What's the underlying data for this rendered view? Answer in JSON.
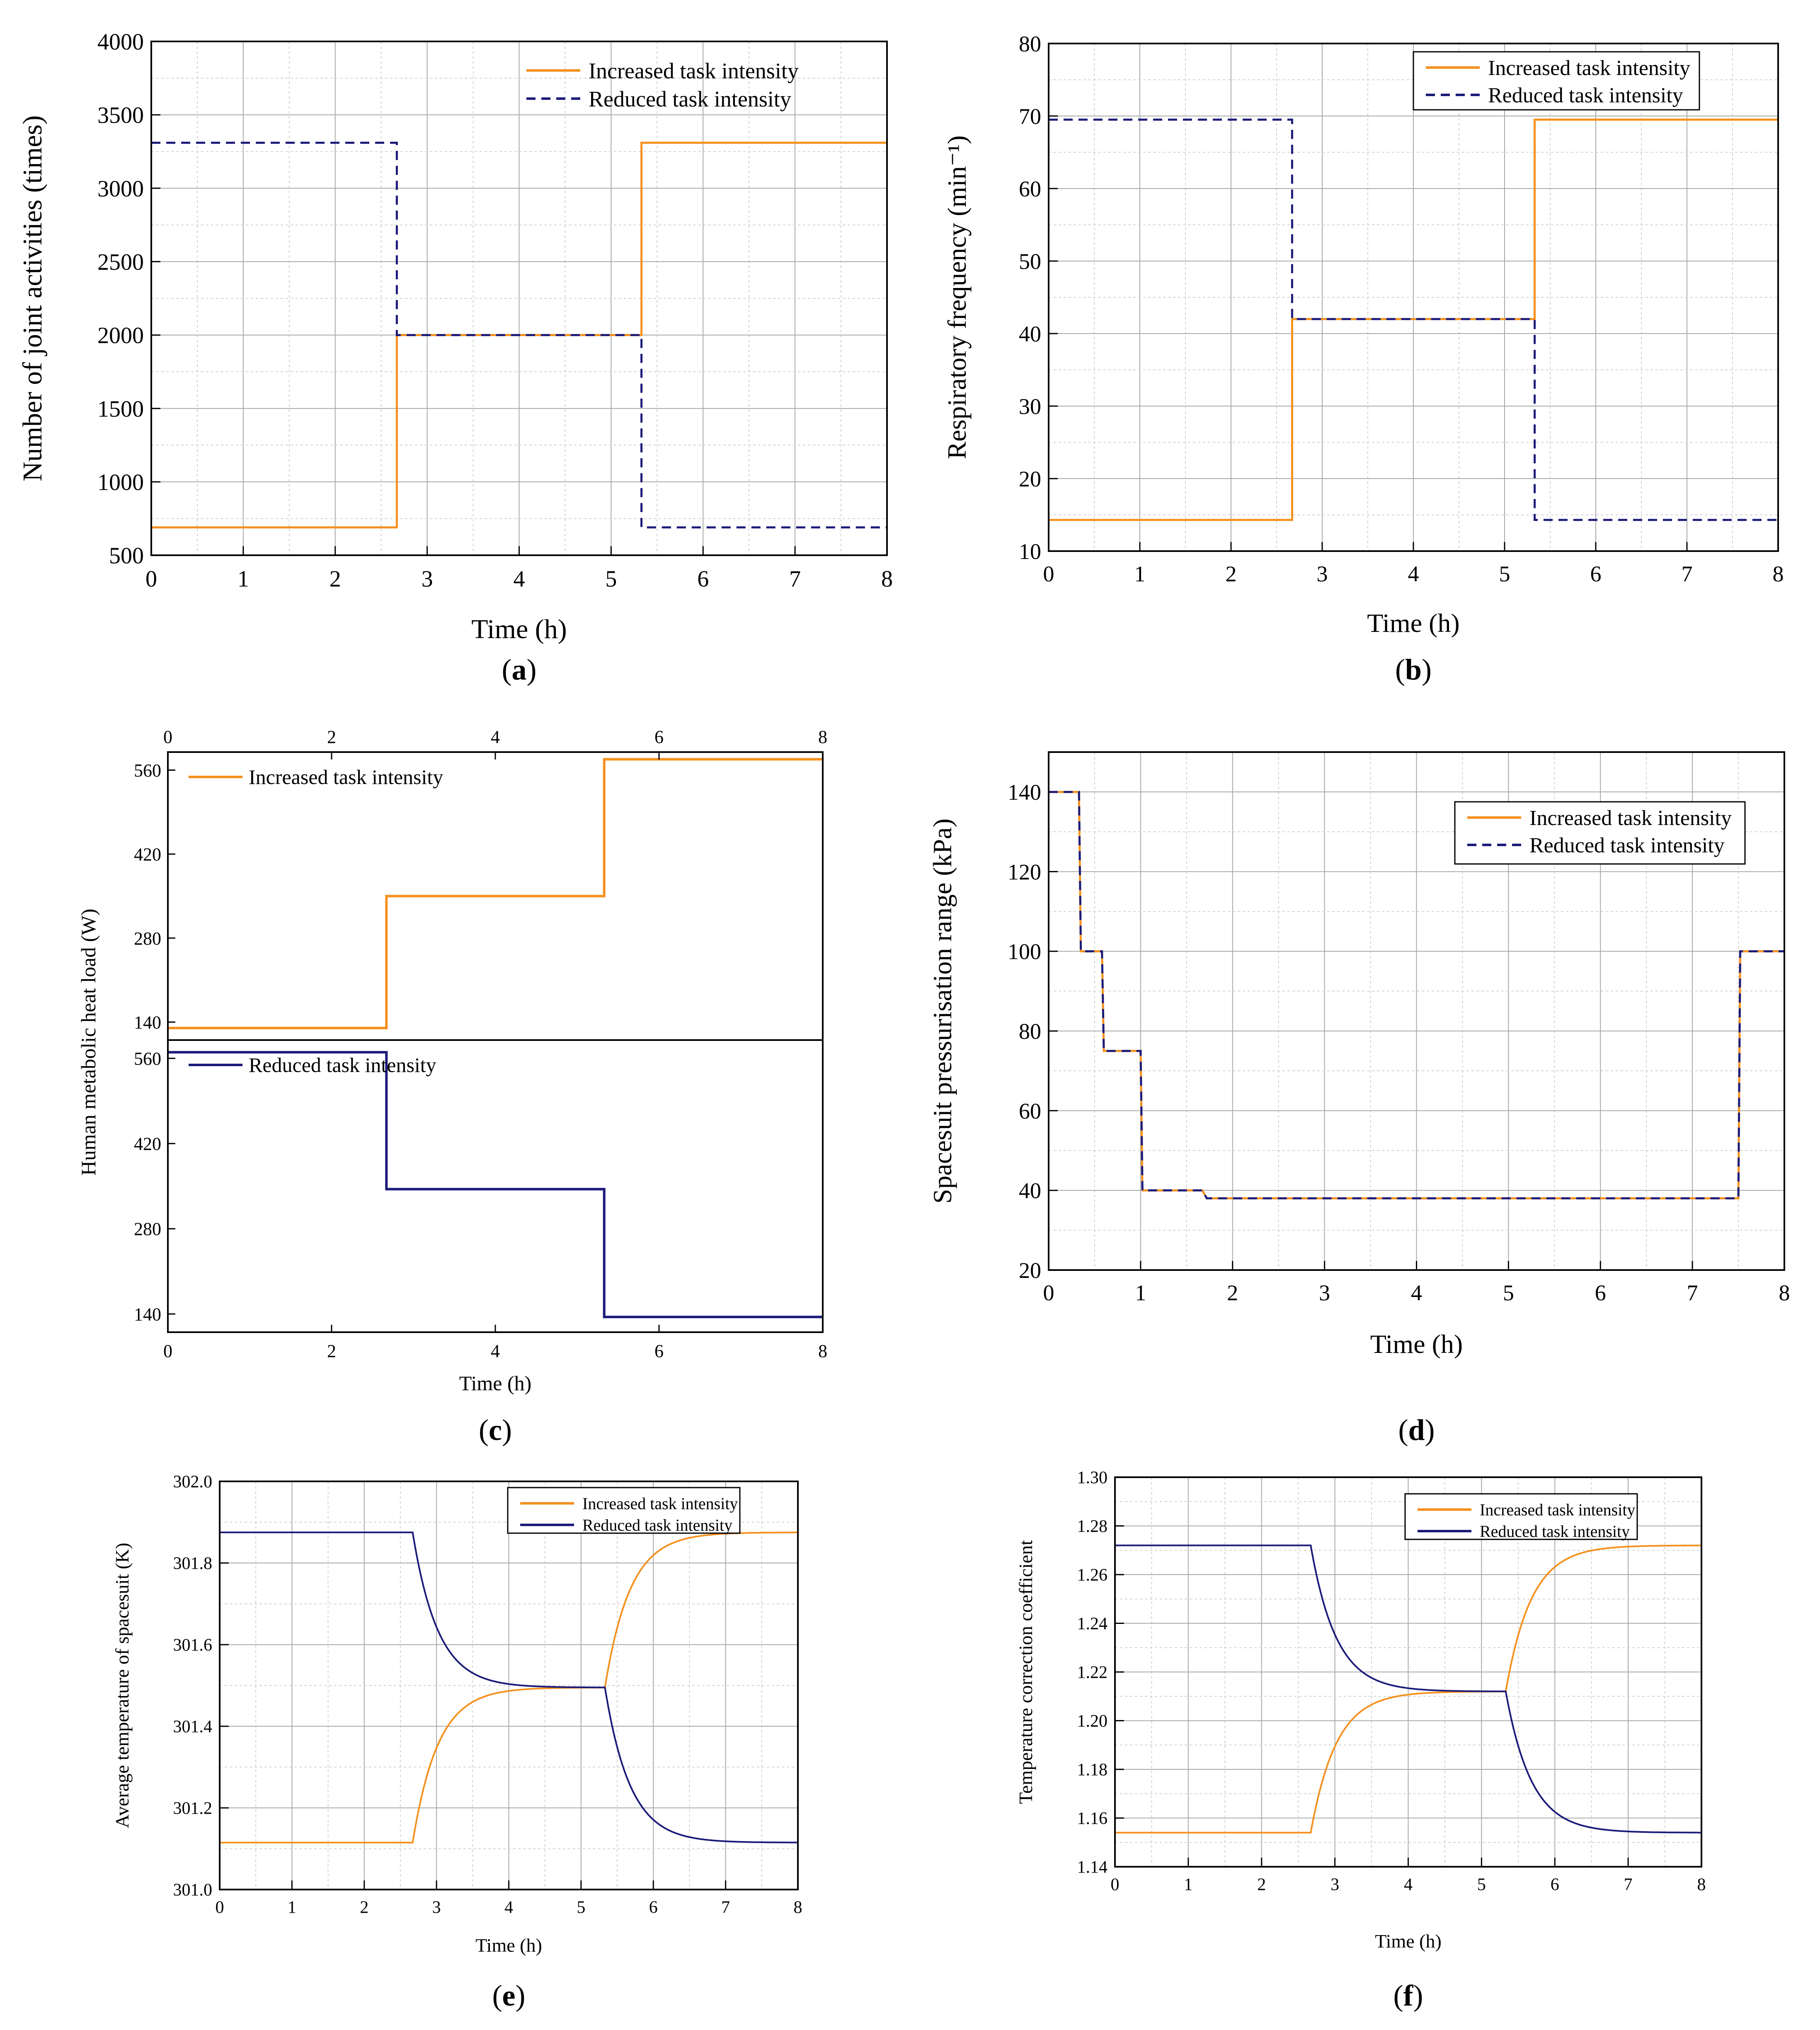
{
  "figure": {
    "colors": {
      "increased": "#F5901E",
      "reduced": "#1B1B7A",
      "grid": "#a8a8a8",
      "minor_grid": "#d2d2d2"
    },
    "legend": {
      "increased": "Increased task intensity",
      "reduced": "Reduced task intensity"
    }
  },
  "chart_data": [
    {
      "id": "a",
      "type": "line",
      "caption": "(a)",
      "xlabel": "Time (h)",
      "ylabel": "Number of joint activities (times)",
      "xlim": [
        0,
        8
      ],
      "ylim": [
        500,
        4000
      ],
      "xticks": [
        0,
        1,
        2,
        3,
        4,
        5,
        6,
        7,
        8
      ],
      "yticks": [
        500,
        1000,
        1500,
        2000,
        2500,
        3000,
        3500,
        4000
      ],
      "legend_position": "top-right",
      "series": [
        {
          "name": "Increased task intensity",
          "style": "solid",
          "color": "#F5901E",
          "step": true,
          "x": [
            0,
            2.67,
            2.67,
            5.33,
            5.33,
            8
          ],
          "y": [
            690,
            690,
            2000,
            2000,
            3310,
            3310
          ]
        },
        {
          "name": "Reduced task intensity",
          "style": "dashed",
          "color": "#1B1B7A",
          "step": true,
          "x": [
            0,
            2.67,
            2.67,
            5.33,
            5.33,
            8
          ],
          "y": [
            3310,
            3310,
            2000,
            2000,
            690,
            690
          ]
        }
      ]
    },
    {
      "id": "b",
      "type": "line",
      "caption": "(b)",
      "xlabel": "Time (h)",
      "ylabel": "Respiratory frequency (min⁻¹)",
      "xlim": [
        0,
        8
      ],
      "ylim": [
        10,
        80
      ],
      "xticks": [
        0,
        1,
        2,
        3,
        4,
        5,
        6,
        7,
        8
      ],
      "yticks": [
        10,
        20,
        30,
        40,
        50,
        60,
        70,
        80
      ],
      "legend_position": "top-right",
      "series": [
        {
          "name": "Increased task intensity",
          "style": "solid",
          "color": "#F5901E",
          "step": true,
          "x": [
            0,
            2.67,
            2.67,
            5.33,
            5.33,
            8
          ],
          "y": [
            14.3,
            14.3,
            42,
            42,
            69.5,
            69.5
          ]
        },
        {
          "name": "Reduced task intensity",
          "style": "dashed",
          "color": "#1B1B7A",
          "step": true,
          "x": [
            0,
            2.67,
            2.67,
            5.33,
            5.33,
            8
          ],
          "y": [
            69.5,
            69.5,
            42,
            42,
            14.3,
            14.3
          ]
        }
      ]
    },
    {
      "id": "c",
      "type": "line",
      "caption": "(c)",
      "xlabel": "Time (h)",
      "ylabel": "Human metabolic heat load (W)",
      "xlim": [
        0,
        8
      ],
      "xticks": [
        0,
        2,
        4,
        6,
        8
      ],
      "panels": [
        {
          "ylim": [
            110,
            590
          ],
          "yticks": [
            140,
            280,
            420,
            560
          ],
          "legend_position": "top-left",
          "series": [
            {
              "name": "Increased task intensity",
              "style": "solid",
              "color": "#F5901E",
              "step": true,
              "x": [
                0,
                2.67,
                2.67,
                5.33,
                5.33,
                8
              ],
              "y": [
                130,
                130,
                350,
                350,
                578,
                578
              ]
            }
          ]
        },
        {
          "ylim": [
            110,
            590
          ],
          "yticks": [
            140,
            280,
            420,
            560
          ],
          "legend_position": "top-left",
          "series": [
            {
              "name": "Reduced task intensity",
              "style": "solid",
              "color": "#1B1B7A",
              "step": true,
              "x": [
                0,
                2.67,
                2.67,
                5.33,
                5.33,
                8
              ],
              "y": [
                570,
                570,
                345,
                345,
                135,
                135
              ]
            }
          ]
        }
      ]
    },
    {
      "id": "d",
      "type": "line",
      "caption": "(d)",
      "xlabel": "Time (h)",
      "ylabel": "Spacesuit pressurisation range (kPa)",
      "xlim": [
        0,
        8
      ],
      "ylim": [
        20,
        150
      ],
      "xticks": [
        0,
        1,
        2,
        3,
        4,
        5,
        6,
        7,
        8
      ],
      "yticks": [
        20,
        40,
        60,
        80,
        100,
        120,
        140
      ],
      "legend_position": "top-right",
      "series": [
        {
          "name": "Increased task intensity",
          "style": "solid",
          "color": "#F5901E",
          "step": true,
          "x": [
            0,
            0.33,
            0.35,
            0.58,
            0.6,
            1.0,
            1.02,
            1.67,
            1.72,
            7.5,
            7.52,
            8
          ],
          "y": [
            140,
            140,
            100,
            100,
            75,
            75,
            40,
            40,
            38,
            38,
            100,
            100
          ]
        },
        {
          "name": "Reduced task intensity",
          "style": "dashed",
          "color": "#1B1B7A",
          "step": true,
          "x": [
            0,
            0.33,
            0.35,
            0.58,
            0.6,
            1.0,
            1.02,
            1.67,
            1.72,
            7.5,
            7.52,
            8
          ],
          "y": [
            140,
            140,
            100,
            100,
            75,
            75,
            40,
            40,
            38,
            38,
            100,
            100
          ]
        }
      ]
    },
    {
      "id": "e",
      "type": "line",
      "caption": "(e)",
      "xlabel": "Time (h)",
      "ylabel": "Average temperature of spacesuit (K)",
      "xlim": [
        0,
        8
      ],
      "ylim": [
        301.0,
        302.0
      ],
      "xticks": [
        0,
        1,
        2,
        3,
        4,
        5,
        6,
        7,
        8
      ],
      "yticks": [
        "301.0",
        "301.2",
        "301.4",
        "301.6",
        "301.8",
        "302.0"
      ],
      "legend_position": "top-right",
      "series": [
        {
          "name": "Increased task intensity",
          "style": "solid",
          "color": "#F5901E",
          "exponential": true,
          "levels": [
            301.115,
            301.495,
            301.875
          ],
          "switch_times": [
            2.67,
            5.33
          ],
          "time_constant": 0.35
        },
        {
          "name": "Reduced task intensity",
          "style": "solid",
          "color": "#1B1B7A",
          "exponential": true,
          "levels": [
            301.875,
            301.495,
            301.115
          ],
          "switch_times": [
            2.67,
            5.33
          ],
          "time_constant": 0.35
        }
      ]
    },
    {
      "id": "f",
      "type": "line",
      "caption": "(f)",
      "xlabel": "Time (h)",
      "ylabel": "Temperature correction coefficient",
      "xlim": [
        0,
        8
      ],
      "ylim": [
        1.14,
        1.3
      ],
      "xticks": [
        0,
        1,
        2,
        3,
        4,
        5,
        6,
        7,
        8
      ],
      "yticks": [
        "1.14",
        "1.16",
        "1.18",
        "1.20",
        "1.22",
        "1.24",
        "1.26",
        "1.28",
        "1.30"
      ],
      "legend_position": "top-right",
      "series": [
        {
          "name": "Increased task intensity",
          "style": "solid",
          "color": "#F5901E",
          "exponential": true,
          "levels": [
            1.154,
            1.212,
            1.272
          ],
          "switch_times": [
            2.67,
            5.33
          ],
          "time_constant": 0.35
        },
        {
          "name": "Reduced task intensity",
          "style": "solid",
          "color": "#1B1B7A",
          "exponential": true,
          "levels": [
            1.272,
            1.212,
            1.154
          ],
          "switch_times": [
            2.67,
            5.33
          ],
          "time_constant": 0.35
        }
      ]
    }
  ]
}
